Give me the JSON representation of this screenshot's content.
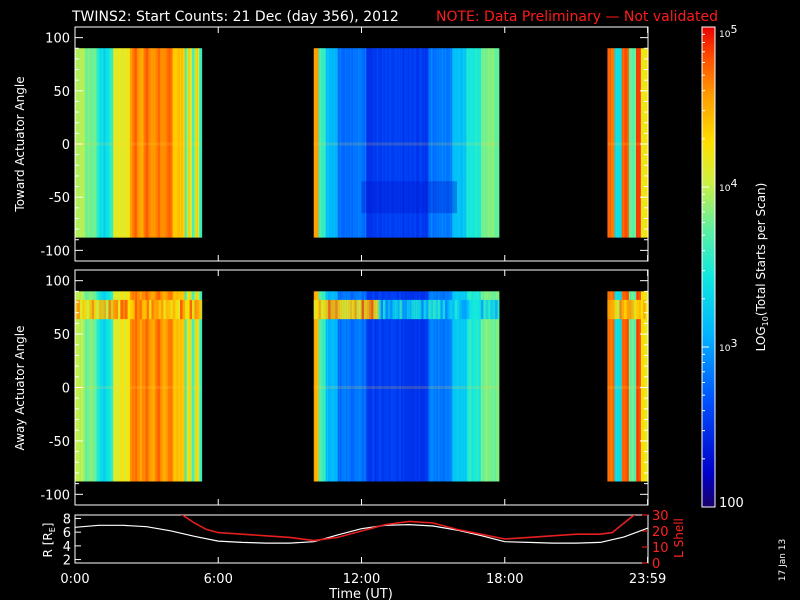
{
  "title": {
    "main": "TWINS2: Start Counts: 21 Dec (day 356), 2012",
    "note": "NOTE: Data Preliminary — Not validated"
  },
  "colors": {
    "background": "#000000",
    "axes": "#ffffff",
    "note": "#ff1a1a",
    "r_line": "#ffffff",
    "lshell_line": "#e61e1e"
  },
  "datestamp": "17 Jan 13",
  "chart_data": [
    {
      "type": "heatmap",
      "panel": "toward",
      "ylabel": "Toward Actuator Angle",
      "ylim": [
        -110,
        110
      ],
      "y_ticks": [
        100,
        50,
        0,
        -50,
        -100
      ],
      "angle_range": [
        -88,
        90
      ],
      "x_range_hours": [
        0,
        24
      ],
      "data_intervals_hours": [
        [
          0,
          5.3
        ],
        [
          10.0,
          17.75
        ],
        [
          22.3,
          24
        ]
      ],
      "color_scale": "log",
      "value_range": [
        100,
        100000
      ]
    },
    {
      "type": "heatmap",
      "panel": "away",
      "ylabel": "Away Actuator Angle",
      "ylim": [
        -110,
        110
      ],
      "y_ticks": [
        100,
        50,
        0,
        -50,
        -100
      ],
      "angle_range": [
        -88,
        90
      ],
      "x_range_hours": [
        0,
        24
      ],
      "data_intervals_hours": [
        [
          0,
          5.3
        ],
        [
          10.0,
          17.75
        ],
        [
          22.3,
          24
        ]
      ],
      "color_scale": "log",
      "value_range": [
        100,
        100000
      ]
    },
    {
      "type": "line",
      "panel": "ephemeris",
      "xlabel": "Time (UT)",
      "x_tick_labels": [
        "0:00",
        "6:00",
        "12:00",
        "18:00",
        "23:59"
      ],
      "x_tick_hours": [
        0,
        6,
        12,
        18,
        23.983
      ],
      "left_axis": {
        "label": "R [R",
        "label_sub": "E",
        "label_end": "]",
        "ylim": [
          1.5,
          8.5
        ],
        "ticks": [
          8,
          6,
          4,
          2
        ]
      },
      "right_axis": {
        "label": "L Shell",
        "ylim": [
          0,
          30
        ],
        "ticks": [
          30,
          20,
          10,
          0
        ]
      },
      "series": [
        {
          "axis": "left",
          "x": [
            0,
            1,
            2,
            3,
            4,
            5,
            6,
            7,
            8,
            9,
            10,
            11,
            12,
            13,
            14,
            15,
            16,
            17,
            18,
            19,
            20,
            21,
            22,
            23,
            24
          ],
          "y": [
            6.7,
            7.0,
            7.0,
            6.8,
            6.2,
            5.4,
            4.7,
            4.5,
            4.4,
            4.4,
            4.6,
            5.6,
            6.5,
            7.0,
            7.1,
            6.9,
            6.3,
            5.5,
            4.6,
            4.5,
            4.4,
            4.4,
            4.5,
            5.3,
            6.6
          ]
        },
        {
          "axis": "right",
          "x": [
            4.0,
            4.5,
            5.0,
            5.5,
            6.0,
            7.0,
            8.0,
            9.0,
            10.0,
            11.0,
            12.0,
            13.0,
            14.0,
            15.0,
            16.0,
            17.0,
            18.0,
            19.0,
            20.0,
            21.0,
            22.0,
            22.5,
            23.0,
            23.5,
            24.0
          ],
          "y": [
            34,
            30,
            25,
            21,
            19,
            18,
            17,
            16,
            14,
            16,
            20,
            24,
            26,
            25,
            21,
            18,
            15,
            16,
            17,
            18,
            18,
            19,
            25,
            31,
            36
          ]
        }
      ]
    }
  ],
  "colorbar": {
    "label_prefix": "LOG",
    "label_sub": "10",
    "label_suffix": "(Total Starts per Scan)",
    "scale": "log",
    "range": [
      100,
      100000
    ],
    "ticks": [
      {
        "value": 100000,
        "label": "10",
        "sup": "5"
      },
      {
        "value": 10000,
        "label": "10",
        "sup": "4"
      },
      {
        "value": 1000,
        "label": "10",
        "sup": "3"
      },
      {
        "value": 100,
        "label": "100",
        "sup": ""
      }
    ]
  }
}
